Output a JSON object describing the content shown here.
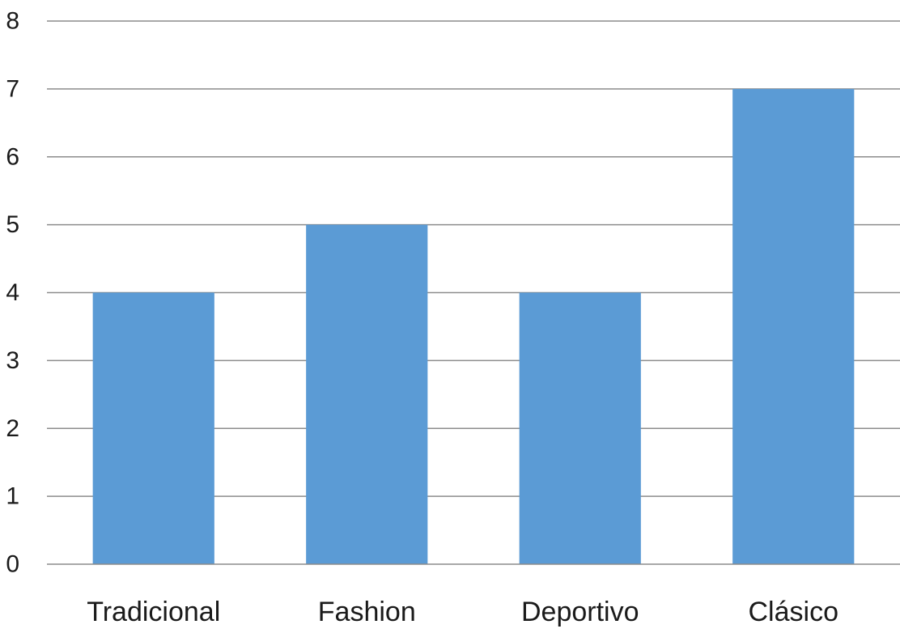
{
  "chart_data": {
    "type": "bar",
    "categories": [
      "Tradicional",
      "Fashion",
      "Deportivo",
      "Clásico"
    ],
    "values": [
      4,
      5,
      4,
      7
    ],
    "title": "",
    "xlabel": "",
    "ylabel": "",
    "ylim": [
      0,
      8
    ],
    "yticks": [
      "0",
      "1",
      "2",
      "3",
      "4",
      "5",
      "6",
      "7",
      "8"
    ],
    "grid": true,
    "legend": "none",
    "colors": {
      "bar": "#5b9bd5",
      "grid": "#8c8c8c",
      "axis": "#8c8c8c",
      "text": "#1a1a1a"
    }
  }
}
